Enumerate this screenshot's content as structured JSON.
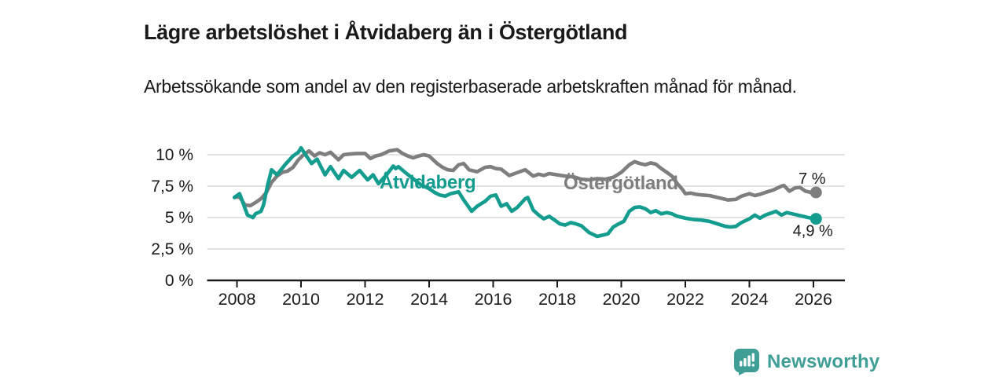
{
  "header": {
    "title": "Lägre arbetslöshet i Åtvidaberg än i Östergötland",
    "subtitle": "Arbetssökande som andel av den registerbaserade arbetskraften månad för månad."
  },
  "chart_data": {
    "type": "line",
    "title": "Lägre arbetslöshet i Åtvidaberg än i Östergötland",
    "xlabel": "",
    "ylabel": "",
    "x_unit": "decimal years (monthly data)",
    "xlim": [
      2007.9,
      2027.0
    ],
    "ylim": [
      0,
      10.8
    ],
    "grid": "horizontal",
    "legend_position": "inline-labels",
    "yticks": [
      {
        "value": 0,
        "label": "0 %"
      },
      {
        "value": 2.5,
        "label": "2,5 %"
      },
      {
        "value": 5,
        "label": "5 %"
      },
      {
        "value": 7.5,
        "label": "7,5 %"
      },
      {
        "value": 10,
        "label": "10 %"
      }
    ],
    "xticks": [
      {
        "value": 2008,
        "label": "2008"
      },
      {
        "value": 2010,
        "label": "2010"
      },
      {
        "value": 2012,
        "label": "2012"
      },
      {
        "value": 2014,
        "label": "2014"
      },
      {
        "value": 2016,
        "label": "2016"
      },
      {
        "value": 2018,
        "label": "2018"
      },
      {
        "value": 2020,
        "label": "2020"
      },
      {
        "value": 2022,
        "label": "2022"
      },
      {
        "value": 2024,
        "label": "2024"
      },
      {
        "value": 2026,
        "label": "2026"
      }
    ],
    "series": [
      {
        "name": "Östergötland",
        "color": "#7E7E7E",
        "end_label": "7 %",
        "end_value": 7.0,
        "points": [
          [
            2007.92,
            6.6
          ],
          [
            2008.08,
            6.65
          ],
          [
            2008.25,
            6.0
          ],
          [
            2008.42,
            5.95
          ],
          [
            2008.58,
            6.2
          ],
          [
            2008.75,
            6.5
          ],
          [
            2008.92,
            7.0
          ],
          [
            2009.08,
            7.8
          ],
          [
            2009.25,
            8.3
          ],
          [
            2009.42,
            8.6
          ],
          [
            2009.58,
            8.7
          ],
          [
            2009.75,
            9.0
          ],
          [
            2009.92,
            9.6
          ],
          [
            2010.08,
            10.0
          ],
          [
            2010.25,
            10.3
          ],
          [
            2010.42,
            9.9
          ],
          [
            2010.58,
            10.15
          ],
          [
            2010.75,
            10.0
          ],
          [
            2010.92,
            10.2
          ],
          [
            2011.17,
            9.6
          ],
          [
            2011.33,
            10.0
          ],
          [
            2011.5,
            10.05
          ],
          [
            2011.75,
            10.1
          ],
          [
            2012.0,
            10.1
          ],
          [
            2012.17,
            9.7
          ],
          [
            2012.33,
            9.9
          ],
          [
            2012.5,
            10.0
          ],
          [
            2012.75,
            10.3
          ],
          [
            2013.0,
            10.4
          ],
          [
            2013.17,
            10.1
          ],
          [
            2013.33,
            9.9
          ],
          [
            2013.5,
            9.75
          ],
          [
            2013.67,
            9.9
          ],
          [
            2013.83,
            10.0
          ],
          [
            2014.0,
            9.9
          ],
          [
            2014.25,
            9.3
          ],
          [
            2014.42,
            9.0
          ],
          [
            2014.58,
            8.8
          ],
          [
            2014.75,
            8.75
          ],
          [
            2014.92,
            9.2
          ],
          [
            2015.08,
            9.3
          ],
          [
            2015.25,
            8.8
          ],
          [
            2015.5,
            8.65
          ],
          [
            2015.75,
            9.0
          ],
          [
            2015.92,
            9.05
          ],
          [
            2016.08,
            8.9
          ],
          [
            2016.25,
            8.85
          ],
          [
            2016.5,
            8.35
          ],
          [
            2016.67,
            8.5
          ],
          [
            2016.83,
            8.65
          ],
          [
            2017.0,
            8.8
          ],
          [
            2017.25,
            8.3
          ],
          [
            2017.42,
            8.45
          ],
          [
            2017.58,
            8.35
          ],
          [
            2017.75,
            8.5
          ],
          [
            2018.0,
            8.4
          ],
          [
            2018.25,
            8.3
          ],
          [
            2018.5,
            8.25
          ],
          [
            2018.75,
            8.05
          ],
          [
            2019.0,
            8.0
          ],
          [
            2019.25,
            8.1
          ],
          [
            2019.5,
            8.05
          ],
          [
            2019.75,
            8.2
          ],
          [
            2020.0,
            8.6
          ],
          [
            2020.25,
            9.2
          ],
          [
            2020.42,
            9.45
          ],
          [
            2020.58,
            9.3
          ],
          [
            2020.75,
            9.2
          ],
          [
            2020.92,
            9.35
          ],
          [
            2021.08,
            9.25
          ],
          [
            2021.25,
            8.9
          ],
          [
            2021.42,
            8.6
          ],
          [
            2021.58,
            8.3
          ],
          [
            2021.75,
            7.7
          ],
          [
            2021.92,
            7.2
          ],
          [
            2022.0,
            6.9
          ],
          [
            2022.17,
            6.95
          ],
          [
            2022.33,
            6.85
          ],
          [
            2022.5,
            6.8
          ],
          [
            2022.75,
            6.75
          ],
          [
            2023.0,
            6.6
          ],
          [
            2023.17,
            6.5
          ],
          [
            2023.33,
            6.4
          ],
          [
            2023.58,
            6.45
          ],
          [
            2023.75,
            6.7
          ],
          [
            2024.0,
            6.9
          ],
          [
            2024.17,
            6.75
          ],
          [
            2024.33,
            6.85
          ],
          [
            2024.5,
            7.0
          ],
          [
            2024.75,
            7.2
          ],
          [
            2025.0,
            7.5
          ],
          [
            2025.08,
            7.55
          ],
          [
            2025.25,
            7.1
          ],
          [
            2025.42,
            7.35
          ],
          [
            2025.58,
            7.4
          ],
          [
            2025.75,
            7.1
          ],
          [
            2025.92,
            7.0
          ],
          [
            2026.08,
            7.0
          ]
        ]
      },
      {
        "name": "Åtvidaberg",
        "color": "#149D8F",
        "end_label": "4,9 %",
        "end_value": 4.9,
        "points": [
          [
            2007.92,
            6.6
          ],
          [
            2008.08,
            6.9
          ],
          [
            2008.17,
            6.3
          ],
          [
            2008.33,
            5.2
          ],
          [
            2008.5,
            5.0
          ],
          [
            2008.58,
            5.3
          ],
          [
            2008.75,
            5.5
          ],
          [
            2008.83,
            6.0
          ],
          [
            2008.96,
            7.6
          ],
          [
            2009.08,
            8.8
          ],
          [
            2009.25,
            8.4
          ],
          [
            2009.5,
            9.2
          ],
          [
            2009.75,
            9.9
          ],
          [
            2009.92,
            10.2
          ],
          [
            2010.0,
            10.55
          ],
          [
            2010.17,
            9.9
          ],
          [
            2010.33,
            9.3
          ],
          [
            2010.5,
            9.65
          ],
          [
            2010.75,
            8.4
          ],
          [
            2010.92,
            9.05
          ],
          [
            2011.17,
            8.1
          ],
          [
            2011.33,
            8.75
          ],
          [
            2011.58,
            8.2
          ],
          [
            2011.83,
            8.75
          ],
          [
            2012.08,
            8.0
          ],
          [
            2012.25,
            8.4
          ],
          [
            2012.42,
            7.7
          ],
          [
            2012.67,
            8.4
          ],
          [
            2012.88,
            9.1
          ],
          [
            2012.96,
            8.9
          ],
          [
            2013.04,
            9.05
          ],
          [
            2013.25,
            8.6
          ],
          [
            2013.5,
            8.1
          ],
          [
            2013.75,
            7.6
          ],
          [
            2014.0,
            7.3
          ],
          [
            2014.17,
            7.0
          ],
          [
            2014.33,
            6.8
          ],
          [
            2014.5,
            6.7
          ],
          [
            2014.67,
            6.9
          ],
          [
            2014.92,
            7.05
          ],
          [
            2015.08,
            6.4
          ],
          [
            2015.33,
            5.5
          ],
          [
            2015.5,
            5.9
          ],
          [
            2015.75,
            6.3
          ],
          [
            2015.92,
            6.7
          ],
          [
            2016.08,
            6.8
          ],
          [
            2016.25,
            5.9
          ],
          [
            2016.42,
            6.1
          ],
          [
            2016.58,
            5.5
          ],
          [
            2016.75,
            5.8
          ],
          [
            2017.0,
            6.5
          ],
          [
            2017.08,
            6.6
          ],
          [
            2017.25,
            5.6
          ],
          [
            2017.42,
            5.2
          ],
          [
            2017.58,
            4.9
          ],
          [
            2017.75,
            5.1
          ],
          [
            2017.92,
            4.8
          ],
          [
            2018.08,
            4.5
          ],
          [
            2018.25,
            4.4
          ],
          [
            2018.42,
            4.6
          ],
          [
            2018.58,
            4.5
          ],
          [
            2018.75,
            4.35
          ],
          [
            2019.0,
            3.8
          ],
          [
            2019.25,
            3.5
          ],
          [
            2019.42,
            3.6
          ],
          [
            2019.58,
            3.7
          ],
          [
            2019.75,
            4.25
          ],
          [
            2019.92,
            4.5
          ],
          [
            2020.08,
            4.7
          ],
          [
            2020.25,
            5.5
          ],
          [
            2020.42,
            5.8
          ],
          [
            2020.58,
            5.85
          ],
          [
            2020.75,
            5.7
          ],
          [
            2020.92,
            5.4
          ],
          [
            2021.08,
            5.55
          ],
          [
            2021.25,
            5.3
          ],
          [
            2021.42,
            5.4
          ],
          [
            2021.58,
            5.3
          ],
          [
            2021.75,
            5.1
          ],
          [
            2022.0,
            4.95
          ],
          [
            2022.25,
            4.85
          ],
          [
            2022.5,
            4.8
          ],
          [
            2022.75,
            4.7
          ],
          [
            2023.0,
            4.5
          ],
          [
            2023.25,
            4.3
          ],
          [
            2023.42,
            4.25
          ],
          [
            2023.58,
            4.3
          ],
          [
            2023.75,
            4.6
          ],
          [
            2024.0,
            4.9
          ],
          [
            2024.17,
            5.2
          ],
          [
            2024.33,
            4.95
          ],
          [
            2024.5,
            5.2
          ],
          [
            2024.67,
            5.35
          ],
          [
            2024.83,
            5.5
          ],
          [
            2025.0,
            5.2
          ],
          [
            2025.17,
            5.4
          ],
          [
            2025.33,
            5.3
          ],
          [
            2025.5,
            5.2
          ],
          [
            2025.67,
            5.1
          ],
          [
            2025.83,
            5.0
          ],
          [
            2026.08,
            4.9
          ]
        ]
      }
    ],
    "colors": {
      "grid": "#DBDBDB",
      "axis": "#1A1A1A",
      "tick_text": "#1A1A1A",
      "end_label_text": "#1A1A1A"
    }
  },
  "footer": {
    "brand": "Newsworthy",
    "brand_color": "#3F9E96"
  }
}
